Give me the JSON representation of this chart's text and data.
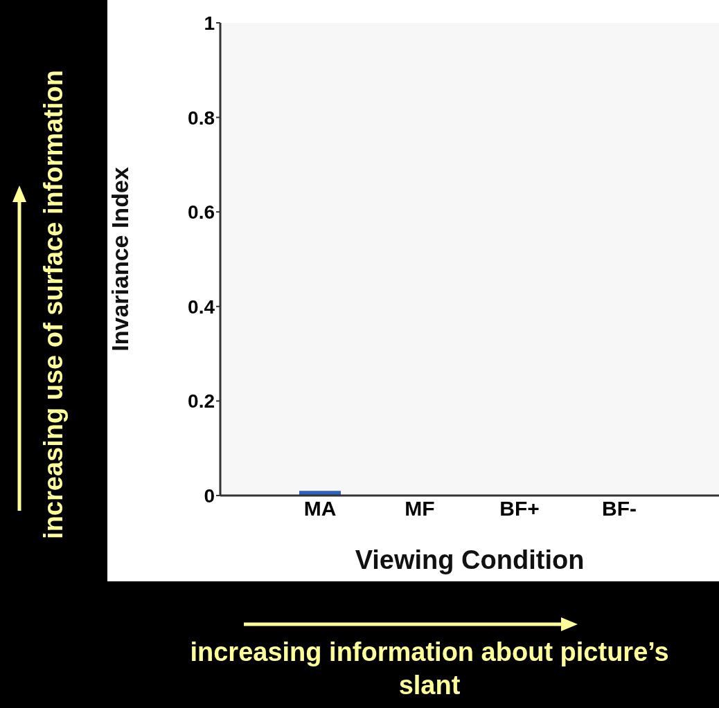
{
  "chart_data": {
    "type": "bar",
    "xlabel": "Viewing Condition",
    "ylabel": "Invariance Index",
    "categories": [
      "MA",
      "MF",
      "BF+",
      "BF-"
    ],
    "values": [
      0.01,
      null,
      null,
      null
    ],
    "color": "#3060c0",
    "ylim": [
      0,
      1
    ],
    "yticks": [
      0,
      0.2,
      0.4,
      0.6,
      0.8,
      1
    ],
    "grid": false,
    "annotations": [
      "increasing use of surface information",
      "increasing information about picture’s slant"
    ]
  }
}
